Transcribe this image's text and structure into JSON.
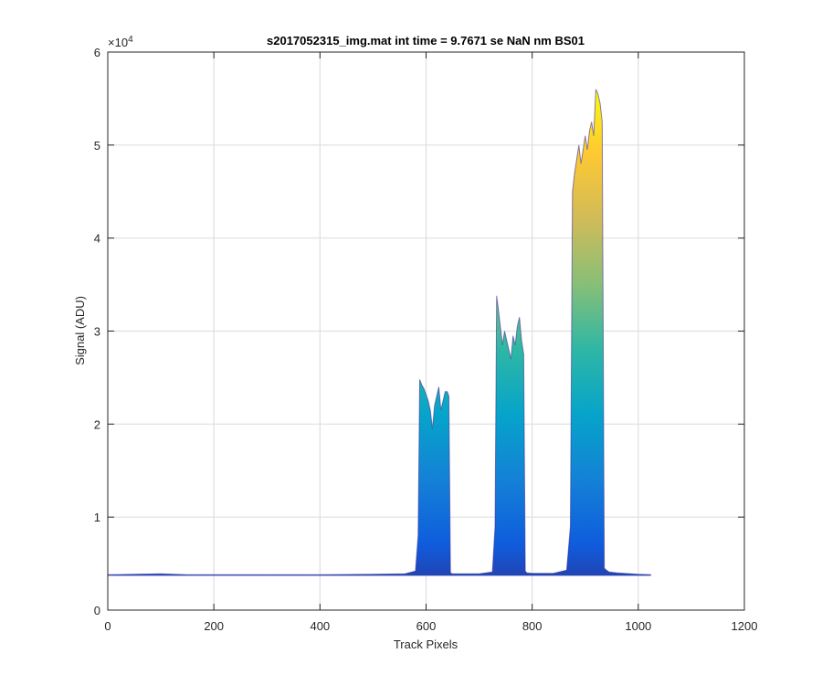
{
  "chart_data": {
    "type": "area",
    "title": "s2017052315_img.mat int time = 9.7671 se  NaN nm BS01",
    "xlabel": "Track Pixels",
    "ylabel": "Signal (ADU)",
    "xlim": [
      0,
      1200
    ],
    "ylim": [
      0,
      60000
    ],
    "y_exponent_label": "×10",
    "y_exponent_power": "4",
    "xticks": [
      0,
      200,
      400,
      600,
      800,
      1000,
      1200
    ],
    "xtick_labels": [
      "0",
      "200",
      "400",
      "600",
      "800",
      "1000",
      "1200"
    ],
    "yticks": [
      0,
      10000,
      20000,
      30000,
      40000,
      50000,
      60000
    ],
    "ytick_labels": [
      "0",
      "1",
      "2",
      "3",
      "4",
      "5",
      "6"
    ],
    "grid": true,
    "colormap": [
      "#352a87",
      "#0f5cdd",
      "#1481d6",
      "#06a4ca",
      "#2eb7a4",
      "#87bf77",
      "#d1bb59",
      "#fec832",
      "#f9fb0e"
    ],
    "series": [
      {
        "x": [
          0,
          100,
          150,
          200,
          300,
          400,
          500,
          560,
          580,
          585,
          588,
          592,
          596,
          600,
          604,
          608,
          612,
          616,
          620,
          624,
          628,
          632,
          636,
          640,
          643,
          646,
          650,
          660,
          700,
          725,
          730,
          733,
          736,
          740,
          744,
          748,
          752,
          756,
          760,
          764,
          768,
          772,
          776,
          780,
          784,
          787,
          790,
          800,
          840,
          865,
          872,
          876,
          880,
          884,
          888,
          892,
          896,
          900,
          904,
          908,
          912,
          916,
          920,
          924,
          928,
          932,
          936,
          940,
          945,
          960,
          1000,
          1024
        ],
        "y": [
          3800,
          3900,
          3800,
          3800,
          3800,
          3800,
          3850,
          3900,
          4200,
          8000,
          24800,
          24200,
          23800,
          23200,
          22500,
          21500,
          19500,
          22000,
          23000,
          24000,
          21500,
          22500,
          23500,
          23500,
          23000,
          4000,
          3900,
          3900,
          3900,
          4100,
          9000,
          33800,
          32500,
          30500,
          28500,
          30000,
          29000,
          28000,
          27000,
          29500,
          28500,
          30500,
          31500,
          29000,
          27500,
          4200,
          4000,
          3950,
          3950,
          4300,
          9000,
          45000,
          47000,
          48500,
          50000,
          48000,
          49500,
          51000,
          49500,
          51500,
          52500,
          51000,
          56000,
          55500,
          54500,
          52500,
          4500,
          4300,
          4100,
          4000,
          3850,
          3800
        ]
      }
    ]
  }
}
